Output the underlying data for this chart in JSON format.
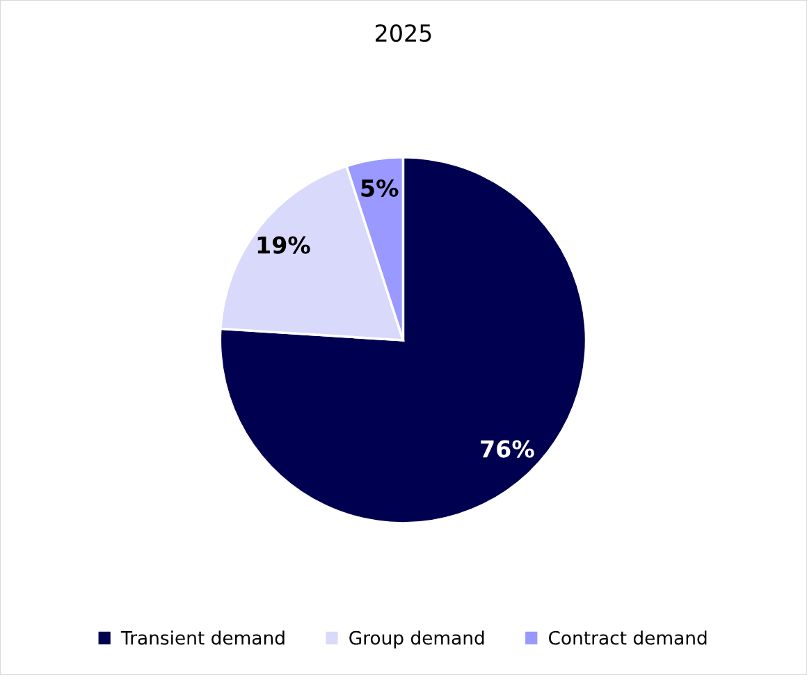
{
  "chart_data": {
    "type": "pie",
    "title": "2025",
    "categories": [
      "Transient demand",
      "Group demand",
      "Contract demand"
    ],
    "values": [
      76,
      19,
      5
    ],
    "colors": [
      "#000050",
      "#d9d9fb",
      "#9999ff"
    ],
    "value_labels": [
      "76%",
      "19%",
      "5%"
    ],
    "legend": "bottom"
  }
}
